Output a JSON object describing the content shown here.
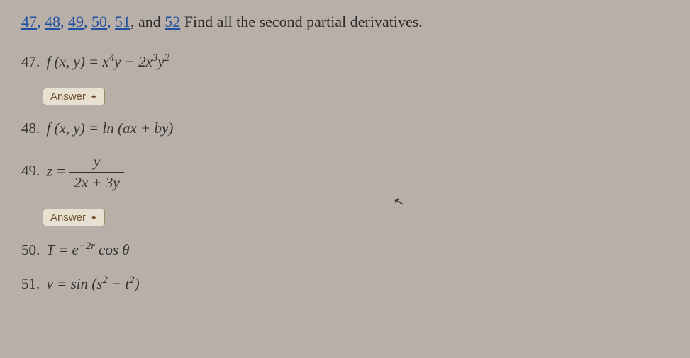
{
  "header": {
    "links": [
      "47",
      "48",
      "49",
      "50",
      "51"
    ],
    "last_link": "52",
    "instruction_text": "Find all the second partial derivatives."
  },
  "problems": {
    "p47": {
      "num": "47.",
      "expr_html": "<i>f</i> (<i>x</i>, <i>y</i>) = <i>x</i><sup>4</sup><i>y</i> − 2<i>x</i><sup>3</sup><i>y</i><sup>2</sup>"
    },
    "p48": {
      "num": "48.",
      "expr_html": "<i>f</i> (<i>x</i>, <i>y</i>) = ln (<i>ax</i> + <i>by</i>)"
    },
    "p49": {
      "num": "49.",
      "lhs": "z =",
      "frac_num": "y",
      "frac_den": "2x + 3y"
    },
    "p50": {
      "num": "50.",
      "expr_html": "<i>T</i> = <i>e</i><sup>−2<i>r</i></sup> cos <i>θ</i>"
    },
    "p51": {
      "num": "51.",
      "expr_html": "<i>v</i> = sin (<i>s</i><sup>2</sup> − <i>t</i><sup>2</sup>)"
    }
  },
  "buttons": {
    "answer_label": "Answer"
  },
  "colors": {
    "background": "#b8b0a8",
    "link": "#2050a0",
    "text": "#2a2a2a",
    "button_bg": "#e8e0d0",
    "button_border": "#9a8a6a",
    "button_text": "#705030"
  },
  "typography": {
    "heading_fontsize": 22,
    "problem_fontsize": 21,
    "button_fontsize": 15
  }
}
